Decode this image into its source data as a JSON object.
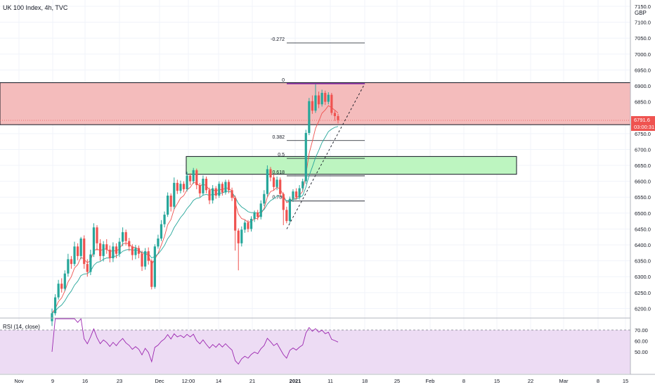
{
  "header": {
    "title": "UK 100 Index, 4h, TVC"
  },
  "currency": "GBP",
  "colors": {
    "bull": "#26a69a",
    "bear": "#ef5350",
    "rsi_line": "#9c27b0",
    "resistance_zone": "#f4bcbc",
    "support_zone": "#bdf5c0",
    "rsi_band": "#eddcf4",
    "fast_ma": "#ef5350",
    "slow_ma": "#26a69a",
    "price_tag": "#ef5350"
  },
  "price_axis": {
    "ticks": [
      "7150.0",
      "7100.0",
      "7050.0",
      "7000.0",
      "6950.0",
      "6900.0",
      "6850.0",
      "6800.0",
      "6750.0",
      "6700.0",
      "6650.0",
      "6600.0",
      "6550.0",
      "6500.0",
      "6450.0",
      "6400.0",
      "6350.0",
      "6300.0",
      "6250.0",
      "6200.0"
    ],
    "last_price": "6791.6",
    "countdown": "03:00:31"
  },
  "rsi": {
    "label": "RSI (14, close)",
    "ticks": [
      "70.00",
      "60.00",
      "50.00"
    ],
    "band": [
      30,
      70
    ]
  },
  "time_axis": [
    "Nov",
    "9",
    "16",
    "23",
    "Dec",
    "12:00",
    "14",
    "21",
    "2021",
    "11",
    "18",
    "25",
    "Feb",
    "8",
    "15",
    "22",
    "Mar",
    "8",
    "15"
  ],
  "fib_levels": [
    {
      "label": "-0.272",
      "price": 7035
    },
    {
      "label": "0",
      "price": 6907
    },
    {
      "label": "0.382",
      "price": 6728
    },
    {
      "label": "0.5",
      "price": 6672
    },
    {
      "label": "0.618",
      "price": 6617
    },
    {
      "label": "0.786",
      "price": 6538
    }
  ],
  "zones": [
    {
      "name": "resistance",
      "high": 6910,
      "low": 6778
    },
    {
      "name": "support",
      "high": 6678,
      "low": 6622
    }
  ],
  "chart_data": {
    "type": "candlestick",
    "title": "UK 100 Index, 4h, TVC",
    "ylim": [
      6170,
      7170
    ],
    "x_range_labels": [
      "Nov",
      "Mar"
    ],
    "candles": [
      [
        6160,
        6185,
        6145,
        6200
      ],
      [
        6185,
        6235,
        6178,
        6245
      ],
      [
        6235,
        6278,
        6228,
        6290
      ],
      [
        6278,
        6262,
        6250,
        6295
      ],
      [
        6262,
        6310,
        6255,
        6320
      ],
      [
        6310,
        6355,
        6300,
        6372
      ],
      [
        6355,
        6340,
        6325,
        6365
      ],
      [
        6340,
        6395,
        6333,
        6410
      ],
      [
        6395,
        6365,
        6352,
        6405
      ],
      [
        6365,
        6420,
        6355,
        6425
      ],
      [
        6420,
        6340,
        6325,
        6430
      ],
      [
        6340,
        6315,
        6300,
        6355
      ],
      [
        6315,
        6370,
        6305,
        6385
      ],
      [
        6370,
        6455,
        6362,
        6468
      ],
      [
        6455,
        6405,
        6382,
        6462
      ],
      [
        6405,
        6365,
        6350,
        6418
      ],
      [
        6365,
        6402,
        6348,
        6412
      ],
      [
        6402,
        6385,
        6372,
        6418
      ],
      [
        6385,
        6358,
        6345,
        6398
      ],
      [
        6358,
        6395,
        6346,
        6408
      ],
      [
        6395,
        6372,
        6358,
        6405
      ],
      [
        6372,
        6410,
        6362,
        6422
      ],
      [
        6410,
        6440,
        6396,
        6455
      ],
      [
        6440,
        6412,
        6398,
        6448
      ],
      [
        6412,
        6395,
        6380,
        6422
      ],
      [
        6395,
        6368,
        6352,
        6402
      ],
      [
        6368,
        6390,
        6355,
        6400
      ],
      [
        6390,
        6372,
        6358,
        6398
      ],
      [
        6372,
        6332,
        6318,
        6382
      ],
      [
        6332,
        6380,
        6322,
        6390
      ],
      [
        6380,
        6350,
        6338,
        6392
      ],
      [
        6350,
        6268,
        6260,
        6355
      ],
      [
        6268,
        6395,
        6262,
        6402
      ],
      [
        6395,
        6420,
        6388,
        6432
      ],
      [
        6420,
        6465,
        6412,
        6478
      ],
      [
        6465,
        6495,
        6455,
        6505
      ],
      [
        6495,
        6555,
        6488,
        6565
      ],
      [
        6555,
        6520,
        6505,
        6562
      ],
      [
        6520,
        6595,
        6512,
        6612
      ],
      [
        6595,
        6570,
        6560,
        6605
      ],
      [
        6570,
        6592,
        6562,
        6602
      ],
      [
        6592,
        6575,
        6565,
        6600
      ],
      [
        6575,
        6618,
        6568,
        6630
      ],
      [
        6618,
        6600,
        6588,
        6625
      ],
      [
        6600,
        6635,
        6592,
        6642
      ],
      [
        6635,
        6588,
        6575,
        6640
      ],
      [
        6588,
        6562,
        6550,
        6595
      ],
      [
        6562,
        6608,
        6555,
        6618
      ],
      [
        6608,
        6572,
        6562,
        6615
      ],
      [
        6572,
        6540,
        6528,
        6580
      ],
      [
        6540,
        6578,
        6530,
        6588
      ],
      [
        6578,
        6555,
        6545,
        6585
      ],
      [
        6555,
        6592,
        6548,
        6600
      ],
      [
        6592,
        6565,
        6555,
        6598
      ],
      [
        6565,
        6598,
        6558,
        6605
      ],
      [
        6598,
        6572,
        6562,
        6605
      ],
      [
        6572,
        6548,
        6538,
        6580
      ],
      [
        6548,
        6445,
        6382,
        6555
      ],
      [
        6445,
        6405,
        6320,
        6452
      ],
      [
        6405,
        6448,
        6395,
        6458
      ],
      [
        6448,
        6470,
        6438,
        6478
      ],
      [
        6470,
        6450,
        6440,
        6478
      ],
      [
        6450,
        6482,
        6442,
        6490
      ],
      [
        6482,
        6502,
        6472,
        6508
      ],
      [
        6502,
        6488,
        6478,
        6510
      ],
      [
        6488,
        6530,
        6480,
        6540
      ],
      [
        6530,
        6560,
        6522,
        6572
      ],
      [
        6560,
        6638,
        6552,
        6650
      ],
      [
        6638,
        6612,
        6600,
        6645
      ],
      [
        6612,
        6582,
        6570,
        6622
      ],
      [
        6582,
        6605,
        6572,
        6615
      ],
      [
        6605,
        6560,
        6550,
        6612
      ],
      [
        6560,
        6510,
        6462,
        6565
      ],
      [
        6510,
        6475,
        6468,
        6520
      ],
      [
        6475,
        6545,
        6468,
        6552
      ],
      [
        6545,
        6568,
        6535,
        6575
      ],
      [
        6568,
        6550,
        6542,
        6578
      ],
      [
        6550,
        6578,
        6542,
        6588
      ],
      [
        6578,
        6600,
        6570,
        6608
      ],
      [
        6600,
        6752,
        6592,
        6762
      ],
      [
        6752,
        6852,
        6745,
        6862
      ],
      [
        6852,
        6822,
        6812,
        6870
      ],
      [
        6822,
        6870,
        6815,
        6905
      ],
      [
        6870,
        6842,
        6830,
        6882
      ],
      [
        6842,
        6878,
        6835,
        6888
      ],
      [
        6878,
        6850,
        6840,
        6885
      ],
      [
        6850,
        6872,
        6842,
        6880
      ],
      [
        6872,
        6815,
        6808,
        6878
      ],
      [
        6815,
        6805,
        6790,
        6822
      ],
      [
        6805,
        6792,
        6782,
        6812
      ]
    ],
    "indicators": [
      "RSI (14, close)"
    ]
  }
}
